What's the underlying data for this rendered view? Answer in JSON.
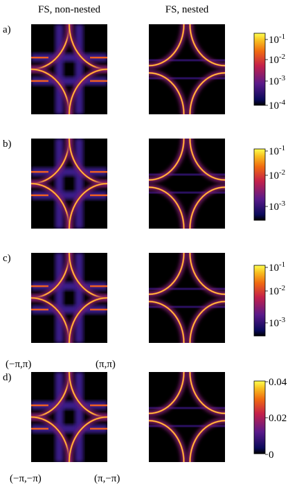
{
  "columns": [
    "FS, non-nested",
    "FS, nested"
  ],
  "rows": [
    {
      "label": "a)",
      "colorbar": [
        {
          "base": "10",
          "exp": "-1"
        },
        {
          "base": "10",
          "exp": "-2"
        },
        {
          "base": "10",
          "exp": "-3"
        },
        {
          "base": "10",
          "exp": "-4"
        }
      ]
    },
    {
      "label": "b)",
      "colorbar": [
        {
          "base": "10",
          "exp": "-1"
        },
        {
          "base": "10",
          "exp": "-2"
        },
        {
          "base": "10",
          "exp": "-3"
        }
      ]
    },
    {
      "label": "c)",
      "colorbar": [
        {
          "base": "10",
          "exp": "-1"
        },
        {
          "base": "10",
          "exp": "-2"
        },
        {
          "base": "10",
          "exp": "-3"
        }
      ]
    },
    {
      "label": "d)",
      "colorbar": [
        {
          "text": "0.04"
        },
        {
          "text": "0.02"
        },
        {
          "text": "0"
        }
      ]
    }
  ],
  "corners": {
    "top_left": "(−π,π)",
    "top_right": "(π,π)",
    "bottom_left": "(−π,−π)",
    "bottom_right": "(π,−π)"
  }
}
